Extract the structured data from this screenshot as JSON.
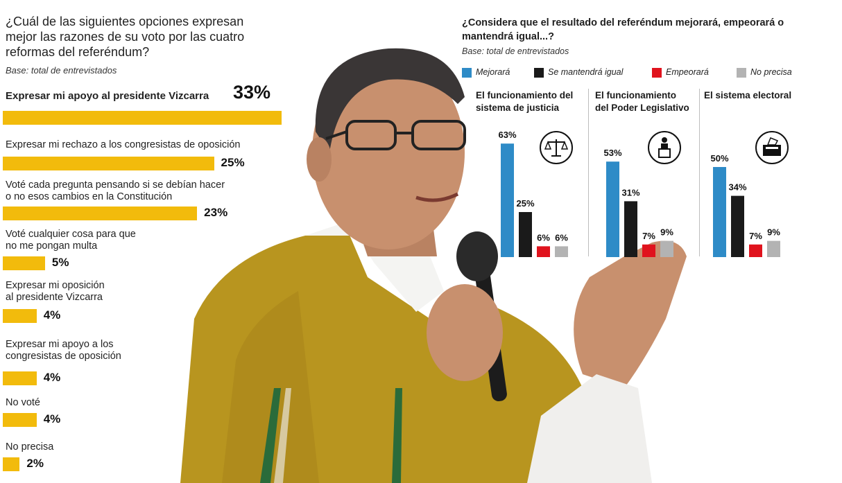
{
  "left": {
    "title": "¿Cuál de las siguientes opciones expresan mejor las razones de su voto por las cuatro reformas del referéndum?",
    "base": "Base: total de entrevistados",
    "chart_data": {
      "type": "bar",
      "orientation": "horizontal",
      "categories": [
        "Expresar mi apoyo al presidente Vizcarra",
        "Expresar mi rechazo a los congresistas de oposición",
        "Voté cada pregunta pensando si se debían hacer o no esos cambios en la Constitución",
        "Voté cualquier cosa para que no me pongan multa",
        "Expresar mi oposición al presidente Vizcarra",
        "Expresar mi apoyo a los congresistas de oposición",
        "No voté",
        "No precisa"
      ],
      "label_lines": [
        [
          "Expresar mi apoyo al presidente Vizcarra"
        ],
        [
          "Expresar mi rechazo a los congresistas de oposición"
        ],
        [
          "Voté cada pregunta pensando si se debían hacer",
          "o no esos cambios en la Constitución"
        ],
        [
          "Voté cualquier cosa para que",
          "no me pongan multa"
        ],
        [
          "Expresar mi oposición",
          "al presidente Vizcarra"
        ],
        [
          "Expresar mi apoyo a los",
          "congresistas de oposición"
        ],
        [
          "No voté"
        ],
        [
          "No precisa"
        ]
      ],
      "values": [
        33,
        25,
        23,
        5,
        4,
        4,
        4,
        2
      ],
      "value_labels": [
        "33%",
        "25%",
        "23%",
        "5%",
        "4%",
        "4%",
        "4%",
        "2%"
      ],
      "color": "#f2bb0c"
    }
  },
  "right": {
    "title": "¿Considera que el resultado del referéndum mejorará, empeorará o mantendrá igual...?",
    "base": "Base: total de entrevistados",
    "chart_data": {
      "type": "bar",
      "legend_position": "top",
      "series": [
        {
          "name": "Mejorará",
          "color": "#2e8bc7",
          "values": [
            63,
            53,
            50
          ]
        },
        {
          "name": "Se mantendrá igual",
          "color": "#1a1a1a",
          "values": [
            25,
            31,
            34
          ]
        },
        {
          "name": "Empeorará",
          "color": "#e0131d",
          "values": [
            6,
            7,
            7
          ]
        },
        {
          "name": "No precisa",
          "color": "#b3b3b3",
          "values": [
            6,
            9,
            9
          ]
        }
      ],
      "categories": [
        "El funcionamiento del sistema de justicia",
        "El funcionamiento del Poder Legislativo",
        "El sistema electoral"
      ],
      "category_lines": [
        [
          "El funcionamiento del",
          "sistema de justicia"
        ],
        [
          "El funcionamiento",
          "del Poder Legislativo"
        ],
        [
          "El sistema electoral"
        ]
      ],
      "value_labels": [
        [
          "63%",
          "25%",
          "6%",
          "6%"
        ],
        [
          "53%",
          "31%",
          "7%",
          "9%"
        ],
        [
          "50%",
          "34%",
          "7%",
          "9%"
        ]
      ],
      "icons": [
        "scales-icon",
        "speaker-podium-icon",
        "ballot-box-icon"
      ]
    }
  },
  "photo": {
    "icon": "politician-with-microphone-photo",
    "colors": {
      "poncho": "#b8951f",
      "skin": "#c8906e",
      "hair": "#3a3636",
      "shirt": "#f4f4f2"
    }
  }
}
